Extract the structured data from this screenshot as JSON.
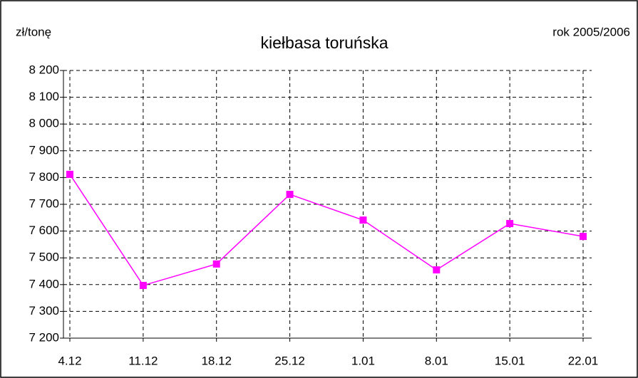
{
  "chart_data": {
    "type": "line",
    "title": "kiełbasa toruńska",
    "y_label": "zł/tonę",
    "annotation": "rok 2005/2006",
    "categories": [
      "4.12",
      "11.12",
      "18.12",
      "25.12",
      "1.01",
      "8.01",
      "15.01",
      "22.01"
    ],
    "series": [
      {
        "name": "kiełbasa toruńska",
        "color": "#ff00ff",
        "values": [
          7812,
          7397,
          7477,
          7737,
          7641,
          7455,
          7628,
          7580
        ]
      }
    ],
    "ylim": [
      7200,
      8200
    ],
    "yticks": [
      {
        "value": 7200,
        "label": "7 200"
      },
      {
        "value": 7300,
        "label": "7 300"
      },
      {
        "value": 7400,
        "label": "7 400"
      },
      {
        "value": 7500,
        "label": "7 500"
      },
      {
        "value": 7600,
        "label": "7 600"
      },
      {
        "value": 7700,
        "label": "7 700"
      },
      {
        "value": 7800,
        "label": "7 800"
      },
      {
        "value": 7900,
        "label": "7 900"
      },
      {
        "value": 8000,
        "label": "8 000"
      },
      {
        "value": 8100,
        "label": "8 100"
      },
      {
        "value": 8200,
        "label": "8 200"
      }
    ],
    "grid": true
  }
}
